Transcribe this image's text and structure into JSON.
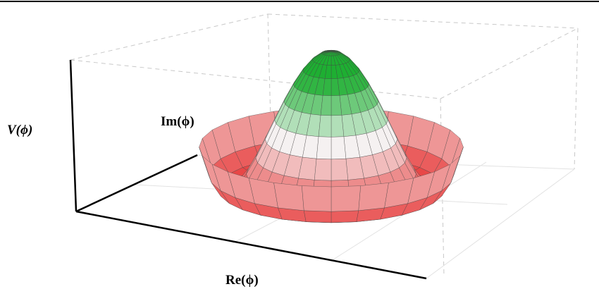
{
  "labels": {
    "z": "V(ϕ)",
    "y": "Im(ϕ)",
    "x": "Re(ϕ)"
  }
}
